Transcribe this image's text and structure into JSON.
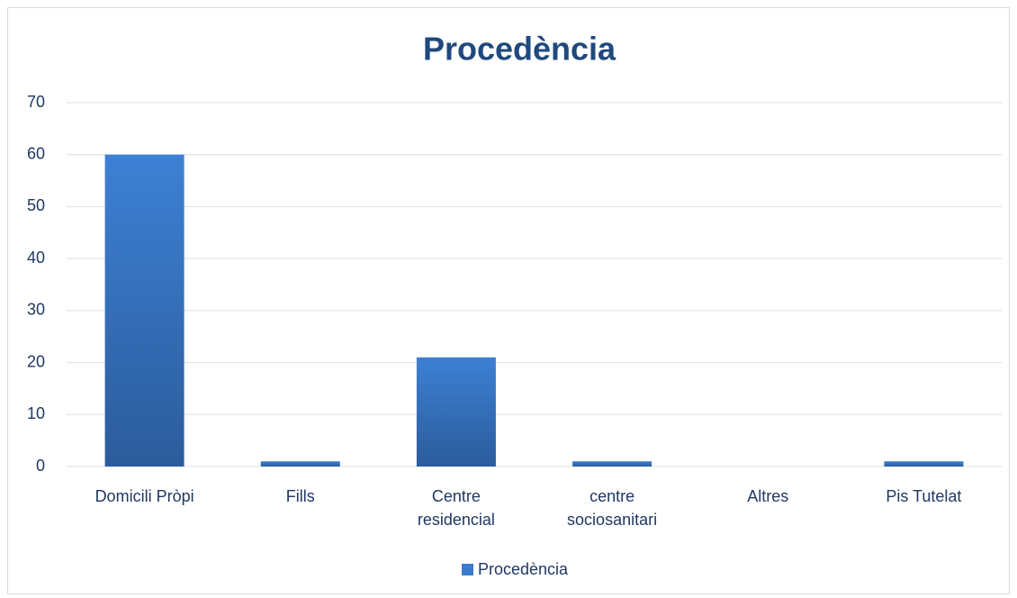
{
  "chart_data": {
    "type": "bar",
    "title": "Procedència",
    "categories": [
      "Domicili Pròpi",
      "Fills",
      "Centre residencial",
      "centre sociosanitari",
      "Altres",
      "Pis Tutelat"
    ],
    "series": [
      {
        "name": "Procedència",
        "color": "#3a7bcc",
        "values": [
          60,
          1,
          21,
          1,
          0,
          1
        ]
      }
    ],
    "ylim": [
      0,
      70
    ],
    "yticks": [
      0,
      10,
      20,
      30,
      40,
      50,
      60,
      70
    ],
    "grid": true,
    "legend": "bottom"
  }
}
